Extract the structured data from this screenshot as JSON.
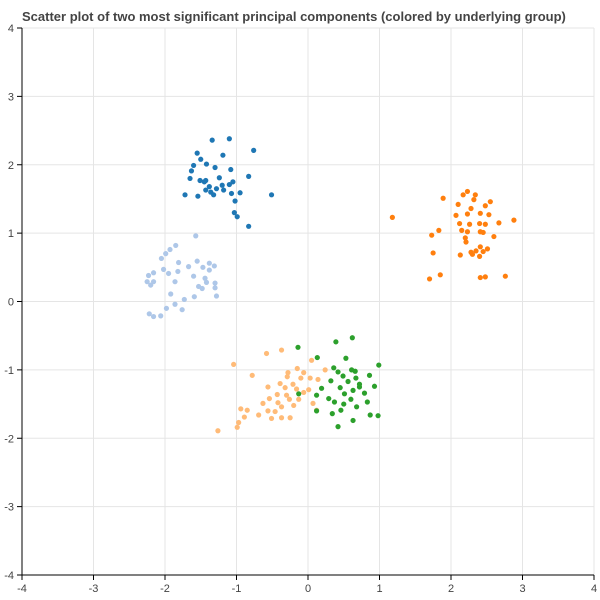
{
  "chart_data": {
    "type": "scatter",
    "title": "Scatter plot of two most significant principal components (colored by underlying group)",
    "xlabel": "",
    "ylabel": "",
    "xlim": [
      -4,
      4
    ],
    "ylim": [
      -4,
      4
    ],
    "xticks": [
      -4,
      -3,
      -2,
      -1,
      0,
      1,
      2,
      3,
      4
    ],
    "yticks": [
      -4,
      -3,
      -2,
      -1,
      0,
      1,
      2,
      3,
      4
    ],
    "x_tick_labels": [
      "-4",
      "-3",
      "-2",
      "-1",
      "0",
      "1",
      "2",
      "3",
      "4"
    ],
    "y_tick_labels": [
      "-4",
      "-3",
      "-2",
      "-1",
      "0",
      "1",
      "2",
      "3",
      "4"
    ],
    "grid": true,
    "legend": "none",
    "series": [
      {
        "color": "#1f77b4",
        "points": [
          [
            -1.34,
            2.36
          ],
          [
            -1.1,
            2.38
          ],
          [
            -0.76,
            2.21
          ],
          [
            -1.55,
            2.17
          ],
          [
            -1.5,
            2.08
          ],
          [
            -1.19,
            2.14
          ],
          [
            -1.42,
            2.01
          ],
          [
            -1.6,
            1.99
          ],
          [
            -1.3,
            1.96
          ],
          [
            -1.63,
            1.91
          ],
          [
            -1.08,
            1.93
          ],
          [
            -0.83,
            1.83
          ],
          [
            -1.65,
            1.8
          ],
          [
            -1.51,
            1.77
          ],
          [
            -1.43,
            1.77
          ],
          [
            -1.24,
            1.81
          ],
          [
            -1.05,
            1.75
          ],
          [
            -1.1,
            1.71
          ],
          [
            -1.38,
            1.68
          ],
          [
            -1.43,
            1.63
          ],
          [
            -1.28,
            1.65
          ],
          [
            -1.18,
            1.63
          ],
          [
            -1.36,
            1.6
          ],
          [
            -1.07,
            1.58
          ],
          [
            -1.72,
            1.56
          ],
          [
            -1.54,
            1.54
          ],
          [
            -1.32,
            1.56
          ],
          [
            -0.95,
            1.59
          ],
          [
            -0.51,
            1.56
          ],
          [
            -1.02,
            1.47
          ],
          [
            -1.03,
            1.3
          ],
          [
            -0.99,
            1.24
          ],
          [
            -0.83,
            1.1
          ],
          [
            -1.45,
            1.75
          ],
          [
            -1.2,
            1.7
          ]
        ]
      },
      {
        "color": "#aec7e8",
        "points": [
          [
            -1.57,
            0.96
          ],
          [
            -1.85,
            0.82
          ],
          [
            -1.93,
            0.76
          ],
          [
            -1.99,
            0.7
          ],
          [
            -2.05,
            0.63
          ],
          [
            -1.81,
            0.57
          ],
          [
            -1.55,
            0.59
          ],
          [
            -1.38,
            0.56
          ],
          [
            -1.31,
            0.52
          ],
          [
            -1.67,
            0.51
          ],
          [
            -1.47,
            0.5
          ],
          [
            -1.38,
            0.46
          ],
          [
            -2.02,
            0.47
          ],
          [
            -1.82,
            0.44
          ],
          [
            -2.16,
            0.42
          ],
          [
            -1.95,
            0.41
          ],
          [
            -2.23,
            0.38
          ],
          [
            -1.6,
            0.37
          ],
          [
            -1.44,
            0.34
          ],
          [
            -1.86,
            0.29
          ],
          [
            -2.25,
            0.29
          ],
          [
            -2.2,
            0.24
          ],
          [
            -2.16,
            0.29
          ],
          [
            -1.42,
            0.28
          ],
          [
            -1.3,
            0.27
          ],
          [
            -1.53,
            0.22
          ],
          [
            -1.48,
            0.19
          ],
          [
            -1.3,
            0.2
          ],
          [
            -1.92,
            0.11
          ],
          [
            -1.59,
            0.07
          ],
          [
            -1.28,
            0.08
          ],
          [
            -1.73,
            0.03
          ],
          [
            -1.86,
            -0.04
          ],
          [
            -1.98,
            -0.1
          ],
          [
            -1.76,
            -0.12
          ],
          [
            -2.22,
            -0.18
          ],
          [
            -2.16,
            -0.22
          ],
          [
            -2.06,
            -0.21
          ]
        ]
      },
      {
        "color": "#ff7f0e",
        "points": [
          [
            2.23,
            1.61
          ],
          [
            2.17,
            1.56
          ],
          [
            2.34,
            1.56
          ],
          [
            2.32,
            1.49
          ],
          [
            2.55,
            1.46
          ],
          [
            1.89,
            1.51
          ],
          [
            2.1,
            1.42
          ],
          [
            2.48,
            1.4
          ],
          [
            2.28,
            1.36
          ],
          [
            2.07,
            1.26
          ],
          [
            2.23,
            1.28
          ],
          [
            2.41,
            1.29
          ],
          [
            2.53,
            1.27
          ],
          [
            1.18,
            1.23
          ],
          [
            2.88,
            1.19
          ],
          [
            2.12,
            1.14
          ],
          [
            2.26,
            1.13
          ],
          [
            2.4,
            1.14
          ],
          [
            2.48,
            1.13
          ],
          [
            2.67,
            1.15
          ],
          [
            1.83,
            1.04
          ],
          [
            2.15,
            1.04
          ],
          [
            2.23,
            1.02
          ],
          [
            2.41,
            1.02
          ],
          [
            2.45,
            1.01
          ],
          [
            1.73,
            0.97
          ],
          [
            2.2,
            0.93
          ],
          [
            2.6,
            0.95
          ],
          [
            2.21,
            0.87
          ],
          [
            2.41,
            0.8
          ],
          [
            2.51,
            0.77
          ],
          [
            2.45,
            0.73
          ],
          [
            2.35,
            0.74
          ],
          [
            2.28,
            0.72
          ],
          [
            2.13,
            0.68
          ],
          [
            1.75,
            0.71
          ],
          [
            2.3,
            0.69
          ],
          [
            2.4,
            0.66
          ],
          [
            1.85,
            0.39
          ],
          [
            1.7,
            0.33
          ],
          [
            2.41,
            0.35
          ],
          [
            2.48,
            0.36
          ],
          [
            2.76,
            0.37
          ]
        ]
      },
      {
        "color": "#ffbb78",
        "points": [
          [
            -0.37,
            -0.71
          ],
          [
            -0.58,
            -0.76
          ],
          [
            0.05,
            -0.86
          ],
          [
            -1.04,
            -0.92
          ],
          [
            -0.15,
            -0.98
          ],
          [
            0.24,
            -1.0
          ],
          [
            -0.28,
            -1.04
          ],
          [
            -0.06,
            -1.04
          ],
          [
            -0.78,
            -1.08
          ],
          [
            -0.29,
            -1.1
          ],
          [
            -0.1,
            -1.12
          ],
          [
            0.03,
            -1.12
          ],
          [
            0.14,
            -1.14
          ],
          [
            -0.39,
            -1.2
          ],
          [
            -0.21,
            -1.21
          ],
          [
            -0.56,
            -1.25
          ],
          [
            -0.32,
            -1.26
          ],
          [
            -0.16,
            -1.28
          ],
          [
            0.01,
            -1.29
          ],
          [
            -0.06,
            -1.33
          ],
          [
            -0.43,
            -1.36
          ],
          [
            -0.3,
            -1.37
          ],
          [
            -0.54,
            -1.42
          ],
          [
            -0.26,
            -1.43
          ],
          [
            -0.13,
            -1.43
          ],
          [
            -0.63,
            -1.49
          ],
          [
            -0.42,
            -1.48
          ],
          [
            0.07,
            -1.49
          ],
          [
            -0.2,
            -1.52
          ],
          [
            -0.37,
            -1.54
          ],
          [
            -0.94,
            -1.57
          ],
          [
            -0.85,
            -1.59
          ],
          [
            -0.56,
            -1.6
          ],
          [
            0.12,
            -1.59
          ],
          [
            -0.46,
            -1.61
          ],
          [
            -0.69,
            -1.66
          ],
          [
            -0.89,
            -1.69
          ],
          [
            -0.37,
            -1.7
          ],
          [
            -0.51,
            -1.71
          ],
          [
            -0.25,
            -1.7
          ],
          [
            -0.97,
            -1.77
          ],
          [
            -0.99,
            -1.84
          ],
          [
            -1.26,
            -1.89
          ]
        ]
      },
      {
        "color": "#2ca02c",
        "points": [
          [
            0.62,
            -0.53
          ],
          [
            0.39,
            -0.59
          ],
          [
            -0.14,
            -0.67
          ],
          [
            0.13,
            -0.82
          ],
          [
            0.53,
            -0.83
          ],
          [
            0.36,
            -0.97
          ],
          [
            0.99,
            -0.93
          ],
          [
            0.42,
            -1.03
          ],
          [
            0.61,
            -1.0
          ],
          [
            0.66,
            -1.02
          ],
          [
            0.49,
            -1.09
          ],
          [
            0.86,
            -1.08
          ],
          [
            0.67,
            -1.12
          ],
          [
            0.32,
            -1.16
          ],
          [
            0.56,
            -1.17
          ],
          [
            0.72,
            -1.21
          ],
          [
            0.93,
            -1.24
          ],
          [
            0.45,
            -1.26
          ],
          [
            0.19,
            -1.27
          ],
          [
            0.63,
            -1.3
          ],
          [
            0.51,
            -1.35
          ],
          [
            0.79,
            -1.34
          ],
          [
            -0.13,
            -1.35
          ],
          [
            0.12,
            -1.37
          ],
          [
            0.29,
            -1.42
          ],
          [
            0.6,
            -1.43
          ],
          [
            0.37,
            -1.47
          ],
          [
            0.83,
            -1.47
          ],
          [
            0.5,
            -1.5
          ],
          [
            0.68,
            -1.54
          ],
          [
            0.46,
            -1.59
          ],
          [
            0.12,
            -1.6
          ],
          [
            0.34,
            -1.64
          ],
          [
            0.87,
            -1.66
          ],
          [
            0.98,
            -1.67
          ],
          [
            0.63,
            -1.74
          ],
          [
            0.42,
            -1.83
          ],
          [
            0.72,
            -1.25
          ]
        ]
      }
    ]
  }
}
